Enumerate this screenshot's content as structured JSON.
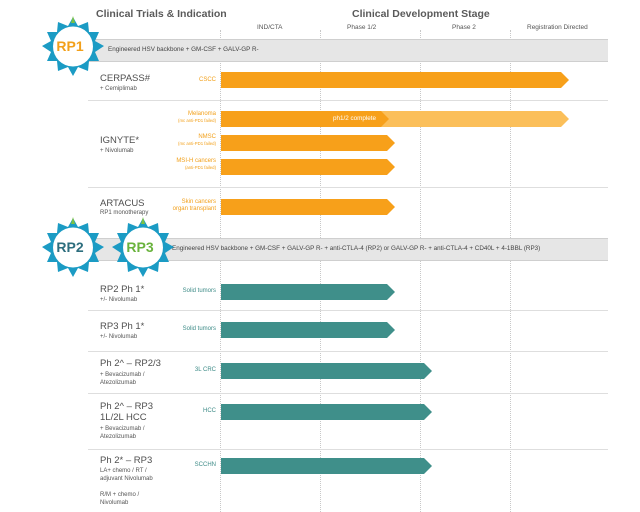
{
  "headers": {
    "left_title": "Clinical Trials & Indication",
    "right_title": "Clinical Development Stage"
  },
  "stages": [
    "IND/CTA",
    "Phase 1/2",
    "Phase 2",
    "Registration Directed"
  ],
  "badges": {
    "rp1": "RP1",
    "rp2": "RP2",
    "rp3": "RP3"
  },
  "bands": {
    "rp1": "Engineered HSV backbone + GM-CSF + GALV-GP R-",
    "rp23": "Engineered HSV backbone + GM-CSF + GALV-GP R- + anti-CTLA-4 (RP2) or GALV-GP R- + anti-CTLA-4 + CD40L + 4-1BBL (RP3)"
  },
  "colors": {
    "orange": "#f7a01a",
    "orange_light": "#fbbf5a",
    "teal": "#3f8f8a",
    "badge_fill": "#1b9bc4",
    "badge_green": "#7cc242",
    "rp1_text": "#f2a01a",
    "rp2_text": "#2d6e7e",
    "rp3_text": "#6ab33d"
  },
  "trials": {
    "cerpass": {
      "name": "CERPASS#",
      "sub": "+ Cemiplimab",
      "indications": [
        {
          "label": "CSCC",
          "sublabel": "",
          "stage_progress": 1.0
        }
      ]
    },
    "ignyte": {
      "name": "IGNYTE*",
      "sub": "+ Nivolumab",
      "indications": [
        {
          "label": "Melanoma",
          "sublabel": "(mc anti-PD1 failed)",
          "stage_progress": 1.0,
          "note": "ph1/2 complete"
        },
        {
          "label": "NMSC",
          "sublabel": "(mc anti-PD1 failed)",
          "stage_progress": 0.5
        },
        {
          "label": "MSI-H cancers",
          "sublabel": "(anti-PD1 failed)",
          "stage_progress": 0.5
        }
      ]
    },
    "artacus": {
      "name": "ARTACUS",
      "sub": "RP1 monotherapy",
      "indications": [
        {
          "label": "Skin cancers",
          "sublabel": "organ transplant",
          "stage_progress": 0.5
        }
      ]
    },
    "rp2ph1": {
      "name": "RP2 Ph 1*",
      "sub": "+/- Nivolumab",
      "indications": [
        {
          "label": "Solid tumors",
          "sublabel": "",
          "stage_progress": 0.5
        }
      ]
    },
    "rp3ph1": {
      "name": "RP3 Ph 1*",
      "sub": "+/- Nivolumab",
      "indications": [
        {
          "label": "Solid tumors",
          "sublabel": "",
          "stage_progress": 0.5
        }
      ]
    },
    "ph2crc": {
      "name": "Ph 2^ – RP2/3",
      "sub1": "+ Bevacizumab /",
      "sub2": "Atezolizumab",
      "indications": [
        {
          "label": "3L CRC",
          "sublabel": "",
          "stage_progress": 0.75
        }
      ]
    },
    "ph2hcc": {
      "name1": "Ph 2^ – RP3",
      "name2": "1L/2L HCC",
      "sub1": "+ Bevacizumab /",
      "sub2": "Atezolizumab",
      "indications": [
        {
          "label": "HCC",
          "sublabel": "",
          "stage_progress": 0.75
        }
      ]
    },
    "ph2scchn": {
      "name": "Ph 2* – RP3",
      "sub1": "LA+ chemo / RT /",
      "sub2": "adjuvant Nivolumab",
      "sub3": "R/M + chemo /",
      "sub4": "Nivolumab",
      "indications": [
        {
          "label": "SCCHN",
          "sublabel": "",
          "stage_progress": 0.75
        }
      ]
    }
  }
}
